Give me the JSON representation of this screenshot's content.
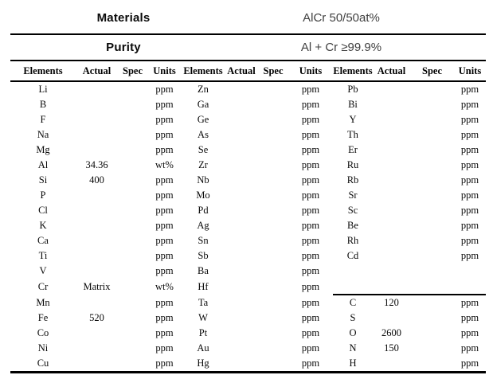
{
  "info": {
    "materials_label": "Materials",
    "materials_value": "AlCr 50/50at%",
    "purity_label": "Purity",
    "purity_value": "Al + Cr ≥99.9%"
  },
  "table": {
    "header_labels": [
      "Elements",
      "Actual",
      "Spec",
      "Units",
      "Elements",
      "Actual",
      "Spec",
      "Units",
      "Elements",
      "Actual",
      "Spec",
      "Units"
    ],
    "rows": [
      {
        "g1": {
          "element": "Li",
          "actual": "",
          "spec": "",
          "units": "ppm"
        },
        "g2": {
          "element": "Zn",
          "actual": "",
          "spec": "",
          "units": "ppm"
        },
        "g3": {
          "element": "Pb",
          "actual": "",
          "spec": "",
          "units": "ppm"
        },
        "sep_above_g3": false
      },
      {
        "g1": {
          "element": "B",
          "actual": "",
          "spec": "",
          "units": "ppm"
        },
        "g2": {
          "element": "Ga",
          "actual": "",
          "spec": "",
          "units": "ppm"
        },
        "g3": {
          "element": "Bi",
          "actual": "",
          "spec": "",
          "units": "ppm"
        },
        "sep_above_g3": false
      },
      {
        "g1": {
          "element": "F",
          "actual": "",
          "spec": "",
          "units": "ppm"
        },
        "g2": {
          "element": "Ge",
          "actual": "",
          "spec": "",
          "units": "ppm"
        },
        "g3": {
          "element": "Y",
          "actual": "",
          "spec": "",
          "units": "ppm"
        },
        "sep_above_g3": false
      },
      {
        "g1": {
          "element": "Na",
          "actual": "",
          "spec": "",
          "units": "ppm"
        },
        "g2": {
          "element": "As",
          "actual": "",
          "spec": "",
          "units": "ppm"
        },
        "g3": {
          "element": "Th",
          "actual": "",
          "spec": "",
          "units": "ppm"
        },
        "sep_above_g3": false
      },
      {
        "g1": {
          "element": "Mg",
          "actual": "",
          "spec": "",
          "units": "ppm"
        },
        "g2": {
          "element": "Se",
          "actual": "",
          "spec": "",
          "units": "ppm"
        },
        "g3": {
          "element": "Er",
          "actual": "",
          "spec": "",
          "units": "ppm"
        },
        "sep_above_g3": false
      },
      {
        "g1": {
          "element": "Al",
          "actual": "34.36",
          "spec": "",
          "units": "wt%"
        },
        "g2": {
          "element": "Zr",
          "actual": "",
          "spec": "",
          "units": "ppm"
        },
        "g3": {
          "element": "Ru",
          "actual": "",
          "spec": "",
          "units": "ppm"
        },
        "sep_above_g3": false
      },
      {
        "g1": {
          "element": "Si",
          "actual": "400",
          "spec": "",
          "units": "ppm"
        },
        "g2": {
          "element": "Nb",
          "actual": "",
          "spec": "",
          "units": "ppm"
        },
        "g3": {
          "element": "Rb",
          "actual": "",
          "spec": "",
          "units": "ppm"
        },
        "sep_above_g3": false
      },
      {
        "g1": {
          "element": "P",
          "actual": "",
          "spec": "",
          "units": "ppm"
        },
        "g2": {
          "element": "Mo",
          "actual": "",
          "spec": "",
          "units": "ppm"
        },
        "g3": {
          "element": "Sr",
          "actual": "",
          "spec": "",
          "units": "ppm"
        },
        "sep_above_g3": false
      },
      {
        "g1": {
          "element": "Cl",
          "actual": "",
          "spec": "",
          "units": "ppm"
        },
        "g2": {
          "element": "Pd",
          "actual": "",
          "spec": "",
          "units": "ppm"
        },
        "g3": {
          "element": "Sc",
          "actual": "",
          "spec": "",
          "units": "ppm"
        },
        "sep_above_g3": false
      },
      {
        "g1": {
          "element": "K",
          "actual": "",
          "spec": "",
          "units": "ppm"
        },
        "g2": {
          "element": "Ag",
          "actual": "",
          "spec": "",
          "units": "ppm"
        },
        "g3": {
          "element": "Be",
          "actual": "",
          "spec": "",
          "units": "ppm"
        },
        "sep_above_g3": false
      },
      {
        "g1": {
          "element": "Ca",
          "actual": "",
          "spec": "",
          "units": "ppm"
        },
        "g2": {
          "element": "Sn",
          "actual": "",
          "spec": "",
          "units": "ppm"
        },
        "g3": {
          "element": "Rh",
          "actual": "",
          "spec": "",
          "units": "ppm"
        },
        "sep_above_g3": false
      },
      {
        "g1": {
          "element": "Ti",
          "actual": "",
          "spec": "",
          "units": "ppm"
        },
        "g2": {
          "element": "Sb",
          "actual": "",
          "spec": "",
          "units": "ppm"
        },
        "g3": {
          "element": "Cd",
          "actual": "",
          "spec": "",
          "units": "ppm"
        },
        "sep_above_g3": false
      },
      {
        "g1": {
          "element": "V",
          "actual": "",
          "spec": "",
          "units": "ppm"
        },
        "g2": {
          "element": "Ba",
          "actual": "",
          "spec": "",
          "units": "ppm"
        },
        "g3": {
          "element": "",
          "actual": "",
          "spec": "",
          "units": ""
        },
        "sep_above_g3": false
      },
      {
        "g1": {
          "element": "Cr",
          "actual": "Matrix",
          "spec": "",
          "units": "wt%"
        },
        "g2": {
          "element": "Hf",
          "actual": "",
          "spec": "",
          "units": "ppm"
        },
        "g3": {
          "element": "",
          "actual": "",
          "spec": "",
          "units": ""
        },
        "sep_above_g3": false
      },
      {
        "g1": {
          "element": "Mn",
          "actual": "",
          "spec": "",
          "units": "ppm"
        },
        "g2": {
          "element": "Ta",
          "actual": "",
          "spec": "",
          "units": "ppm"
        },
        "g3": {
          "element": "C",
          "actual": "120",
          "spec": "",
          "units": "ppm"
        },
        "sep_above_g3": true
      },
      {
        "g1": {
          "element": "Fe",
          "actual": "520",
          "spec": "",
          "units": "ppm"
        },
        "g2": {
          "element": "W",
          "actual": "",
          "spec": "",
          "units": "ppm"
        },
        "g3": {
          "element": "S",
          "actual": "",
          "spec": "",
          "units": "ppm"
        },
        "sep_above_g3": false
      },
      {
        "g1": {
          "element": "Co",
          "actual": "",
          "spec": "",
          "units": "ppm"
        },
        "g2": {
          "element": "Pt",
          "actual": "",
          "spec": "",
          "units": "ppm"
        },
        "g3": {
          "element": "O",
          "actual": "2600",
          "spec": "",
          "units": "ppm"
        },
        "sep_above_g3": false
      },
      {
        "g1": {
          "element": "Ni",
          "actual": "",
          "spec": "",
          "units": "ppm"
        },
        "g2": {
          "element": "Au",
          "actual": "",
          "spec": "",
          "units": "ppm"
        },
        "g3": {
          "element": "N",
          "actual": "150",
          "spec": "",
          "units": "ppm"
        },
        "sep_above_g3": false
      },
      {
        "g1": {
          "element": "Cu",
          "actual": "",
          "spec": "",
          "units": "ppm"
        },
        "g2": {
          "element": "Hg",
          "actual": "",
          "spec": "",
          "units": "ppm"
        },
        "g3": {
          "element": "H",
          "actual": "",
          "spec": "",
          "units": "ppm"
        },
        "sep_above_g3": false
      }
    ]
  }
}
